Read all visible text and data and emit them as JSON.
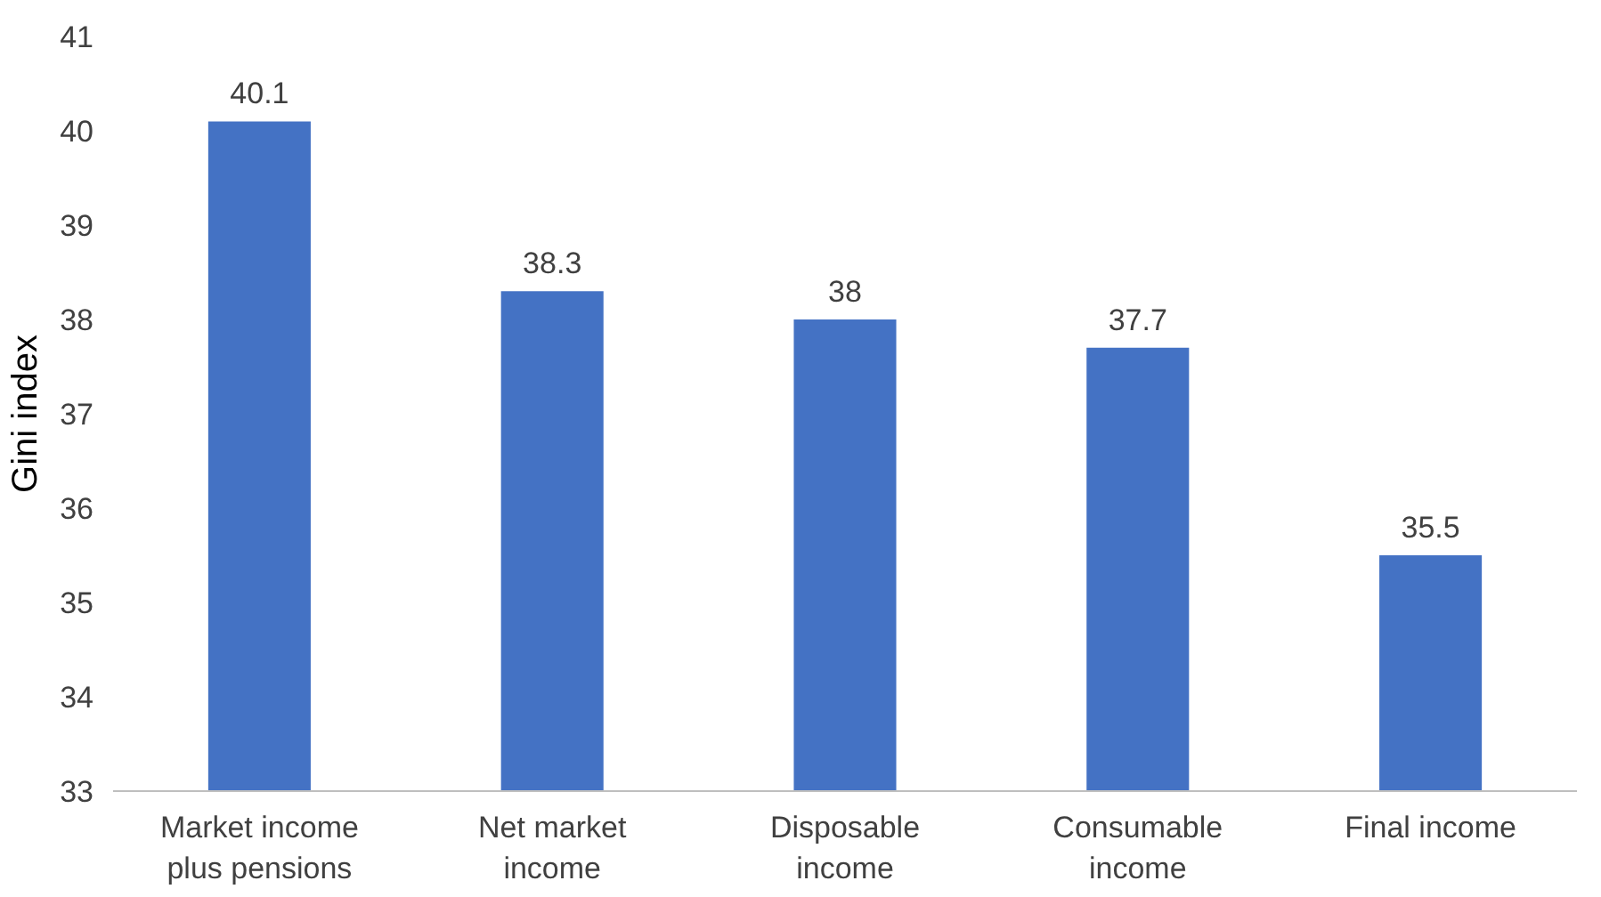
{
  "chart_data": {
    "type": "bar",
    "ylabel": "Gini index",
    "categories": [
      "Market income plus pensions",
      "Net market income",
      "Disposable income",
      "Consumable income",
      "Final income"
    ],
    "values": [
      40.1,
      38.3,
      38,
      37.7,
      35.5
    ],
    "color": "#4472c4",
    "ylim": [
      33,
      41
    ],
    "yticks": [
      33,
      34,
      35,
      36,
      37,
      38,
      39,
      40,
      41
    ],
    "grid": false,
    "data_labels": true
  }
}
